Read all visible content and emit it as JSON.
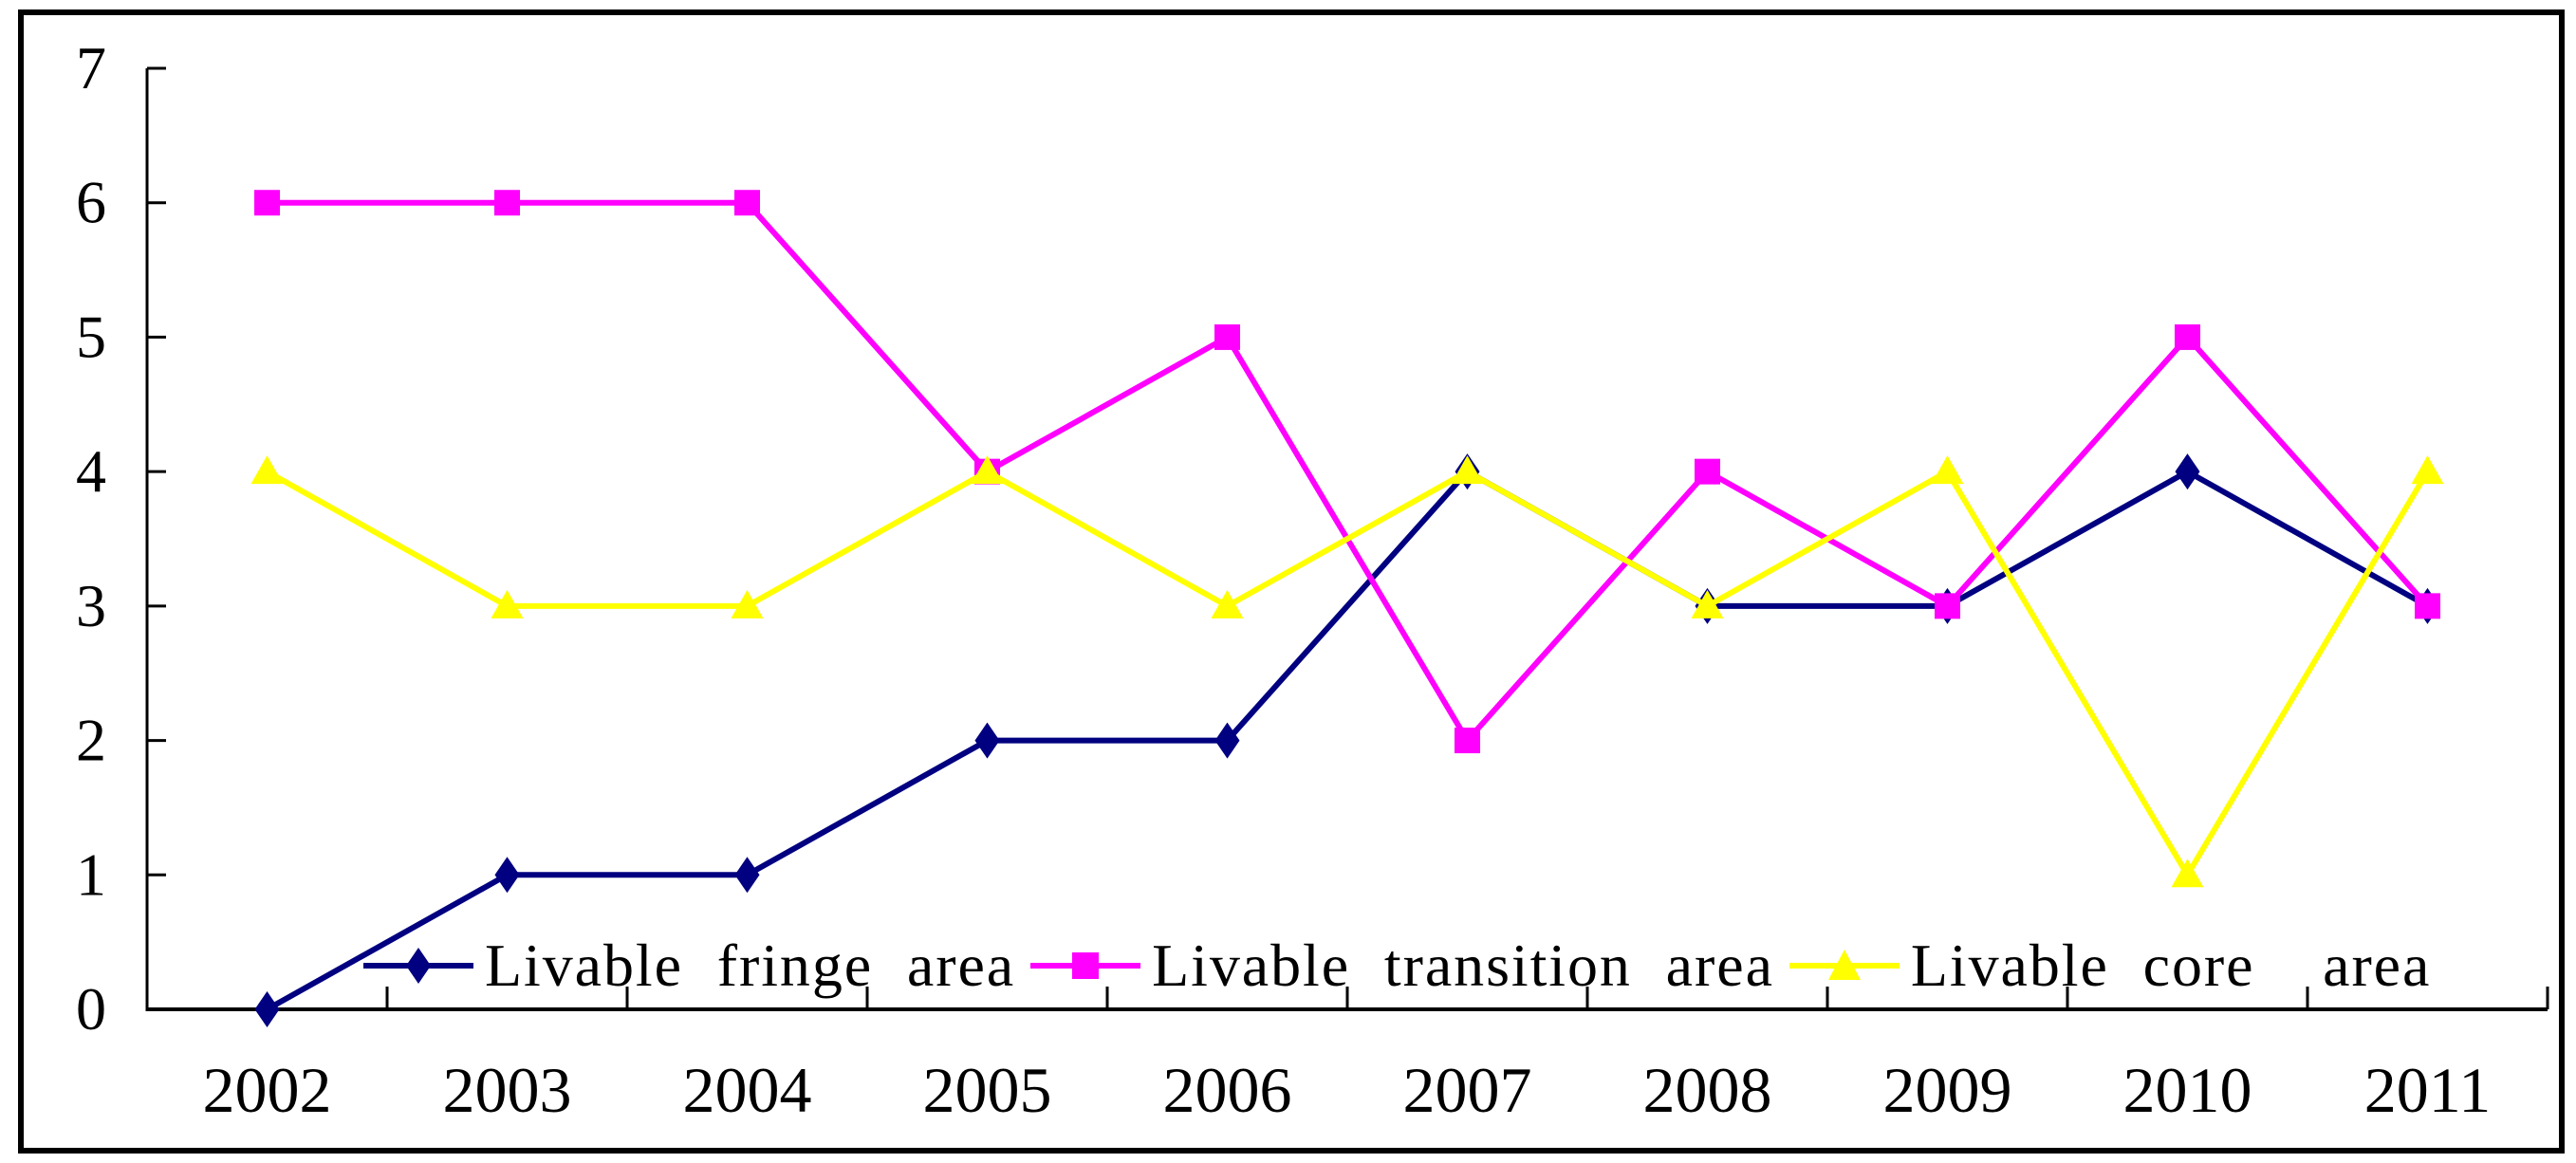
{
  "window": {
    "background": "#ffffff",
    "frame_border_color": "#000000"
  },
  "chart_data": {
    "type": "line",
    "title": "",
    "xlabel": "",
    "ylabel": "",
    "categories": [
      "2002",
      "2003",
      "2004",
      "2005",
      "2006",
      "2007",
      "2008",
      "2009",
      "2010",
      "2011"
    ],
    "series": [
      {
        "name": "Livable fringe area",
        "marker": "diamond",
        "color": "#000080",
        "values": [
          0,
          1,
          1,
          2,
          2,
          4,
          3,
          3,
          4,
          3
        ]
      },
      {
        "name": "Livable transition area",
        "marker": "square",
        "color": "#FF00FF",
        "values": [
          6,
          6,
          6,
          4,
          5,
          2,
          4,
          3,
          5,
          3
        ]
      },
      {
        "name": "Livable core  area",
        "marker": "triangle",
        "color": "#FFFF00",
        "values": [
          4,
          3,
          3,
          4,
          3,
          4,
          3,
          4,
          1,
          4
        ]
      }
    ],
    "ylim": [
      0,
      7
    ],
    "yticks": [
      "0",
      "1",
      "2",
      "3",
      "4",
      "5",
      "6",
      "7"
    ],
    "grid": false,
    "axis_color": "#000000",
    "tick_style": "inside",
    "legend_position": "bottom-inside"
  }
}
